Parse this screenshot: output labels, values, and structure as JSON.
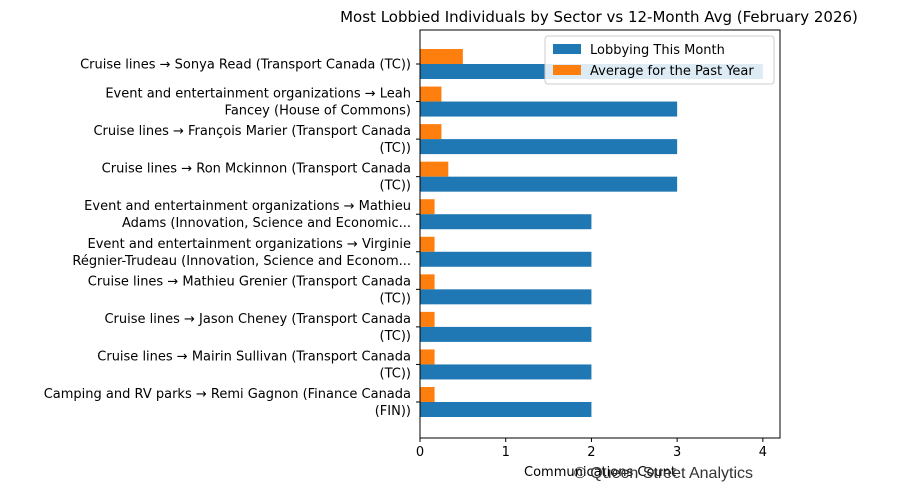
{
  "chart_data": {
    "type": "bar",
    "orientation": "horizontal",
    "title": "Most Lobbied Individuals by Sector vs 12-Month Avg (February 2026)",
    "xlabel": "Communications Count",
    "ylabel": "",
    "xlim": [
      0,
      4.2
    ],
    "xticks": [
      "0",
      "1",
      "2",
      "3",
      "4"
    ],
    "grid": false,
    "legend_position": "top-right",
    "categories": [
      [
        "Cruise lines → Sonya Read (Transport Canada (TC))"
      ],
      [
        "Event and entertainment organizations → Leah",
        "Fancey (House of Commons)"
      ],
      [
        "Cruise lines → François Marier (Transport Canada",
        "(TC))"
      ],
      [
        "Cruise lines → Ron Mckinnon (Transport Canada",
        "(TC))"
      ],
      [
        "Event and entertainment organizations → Mathieu",
        "Adams (Innovation, Science and Economic..."
      ],
      [
        "Event and entertainment organizations → Virginie",
        "Régnier-Trudeau (Innovation, Science and Econom..."
      ],
      [
        "Cruise lines → Mathieu Grenier (Transport Canada",
        "(TC))"
      ],
      [
        "Cruise lines → Jason  Cheney (Transport Canada",
        "(TC))"
      ],
      [
        "Cruise lines → Mairin Sullivan (Transport Canada",
        "(TC))"
      ],
      [
        "Camping and RV parks → Remi Gagnon (Finance Canada",
        "(FIN))"
      ]
    ],
    "series": [
      {
        "name": "Lobbying This Month",
        "color": "#1f77b4",
        "values": [
          4,
          3,
          3,
          3,
          2,
          2,
          2,
          2,
          2,
          2
        ]
      },
      {
        "name": "Average for the Past Year",
        "color": "#ff7f0e",
        "values": [
          0.5,
          0.25,
          0.25,
          0.33,
          0.17,
          0.17,
          0.17,
          0.17,
          0.17,
          0.17
        ]
      }
    ]
  },
  "watermark": "© Queen Street Analytics"
}
